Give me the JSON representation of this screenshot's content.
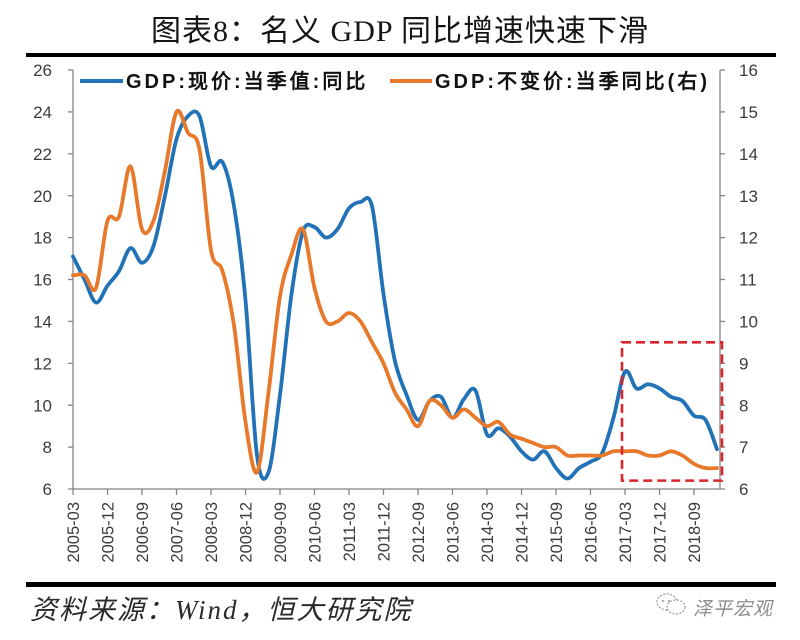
{
  "chart_data": {
    "type": "line",
    "title": "图表8：名义 GDP 同比增速快速下滑",
    "xlabel": "",
    "x": [
      "2005-03",
      "2005-06",
      "2005-09",
      "2005-12",
      "2006-03",
      "2006-06",
      "2006-09",
      "2006-12",
      "2007-03",
      "2007-06",
      "2007-09",
      "2007-12",
      "2008-03",
      "2008-06",
      "2008-09",
      "2008-12",
      "2009-03",
      "2009-06",
      "2009-09",
      "2009-12",
      "2010-03",
      "2010-06",
      "2010-09",
      "2010-12",
      "2011-03",
      "2011-06",
      "2011-09",
      "2011-12",
      "2012-03",
      "2012-06",
      "2012-09",
      "2012-12",
      "2013-03",
      "2013-06",
      "2013-09",
      "2013-12",
      "2014-03",
      "2014-06",
      "2014-09",
      "2014-12",
      "2015-03",
      "2015-06",
      "2015-09",
      "2015-12",
      "2016-03",
      "2016-06",
      "2016-09",
      "2016-12",
      "2017-03",
      "2017-06",
      "2017-09",
      "2017-12",
      "2018-03",
      "2018-06",
      "2018-09",
      "2018-12",
      "2019-03"
    ],
    "x_ticks": [
      "2005-03",
      "2005-12",
      "2006-09",
      "2007-06",
      "2008-03",
      "2008-12",
      "2009-09",
      "2010-06",
      "2011-03",
      "2011-12",
      "2012-09",
      "2013-06",
      "2014-03",
      "2014-12",
      "2015-09",
      "2016-06",
      "2017-03",
      "2017-12",
      "2018-09"
    ],
    "y_left": {
      "label": "",
      "range": [
        6,
        26
      ],
      "ticks": [
        6,
        8,
        10,
        12,
        14,
        16,
        18,
        20,
        22,
        24,
        26
      ]
    },
    "y_right": {
      "label": "",
      "range": [
        6,
        16
      ],
      "ticks": [
        6,
        7,
        8,
        9,
        10,
        11,
        12,
        13,
        14,
        15,
        16
      ]
    },
    "series": [
      {
        "name": "GDP:现价:当季值:同比",
        "axis": "left",
        "color": "#2172b6",
        "smooth": true,
        "values": [
          17.1,
          16.0,
          14.9,
          15.7,
          16.4,
          17.5,
          16.8,
          17.6,
          20.0,
          22.7,
          23.8,
          23.8,
          21.4,
          21.6,
          19.5,
          15.0,
          7.6,
          6.8,
          10.5,
          15.3,
          18.3,
          18.5,
          18.0,
          18.4,
          19.4,
          19.7,
          19.5,
          15.3,
          12.1,
          10.5,
          9.3,
          10.2,
          10.4,
          9.4,
          10.3,
          10.7,
          8.6,
          8.9,
          8.5,
          7.8,
          7.4,
          7.8,
          7.0,
          6.5,
          7.0,
          7.3,
          7.7,
          9.4,
          11.6,
          10.8,
          11.0,
          10.8,
          10.4,
          10.2,
          9.5,
          9.3,
          7.9
        ]
      },
      {
        "name": "GDP:不变价:当季同比(右)",
        "axis": "right",
        "color": "#e8792b",
        "smooth": true,
        "values": [
          11.1,
          11.1,
          10.8,
          12.4,
          12.5,
          13.7,
          12.2,
          12.4,
          13.6,
          15.0,
          14.5,
          14.1,
          11.7,
          11.2,
          9.9,
          7.6,
          6.4,
          8.3,
          10.6,
          11.6,
          12.2,
          10.8,
          10.0,
          10.0,
          10.2,
          10.0,
          9.5,
          9.0,
          8.3,
          7.9,
          7.5,
          8.1,
          8.0,
          7.7,
          7.9,
          7.7,
          7.5,
          7.6,
          7.3,
          7.2,
          7.1,
          7.0,
          7.0,
          6.8,
          6.8,
          6.8,
          6.8,
          6.9,
          6.9,
          6.9,
          6.8,
          6.8,
          6.9,
          6.8,
          6.6,
          6.5,
          6.5
        ]
      }
    ],
    "annotations": [
      {
        "type": "dashed-rectangle",
        "x_from": "2017-03",
        "x_to": "2019-03",
        "axis": "right",
        "y_from": 6.2,
        "y_to": 9.5,
        "color": "#d9262c"
      }
    ],
    "legend": {
      "position": "top"
    },
    "grid": false
  },
  "source": "资料来源：Wind，恒大研究院",
  "watermark": {
    "text": "泽平宏观",
    "icon": "wechat-icon"
  }
}
